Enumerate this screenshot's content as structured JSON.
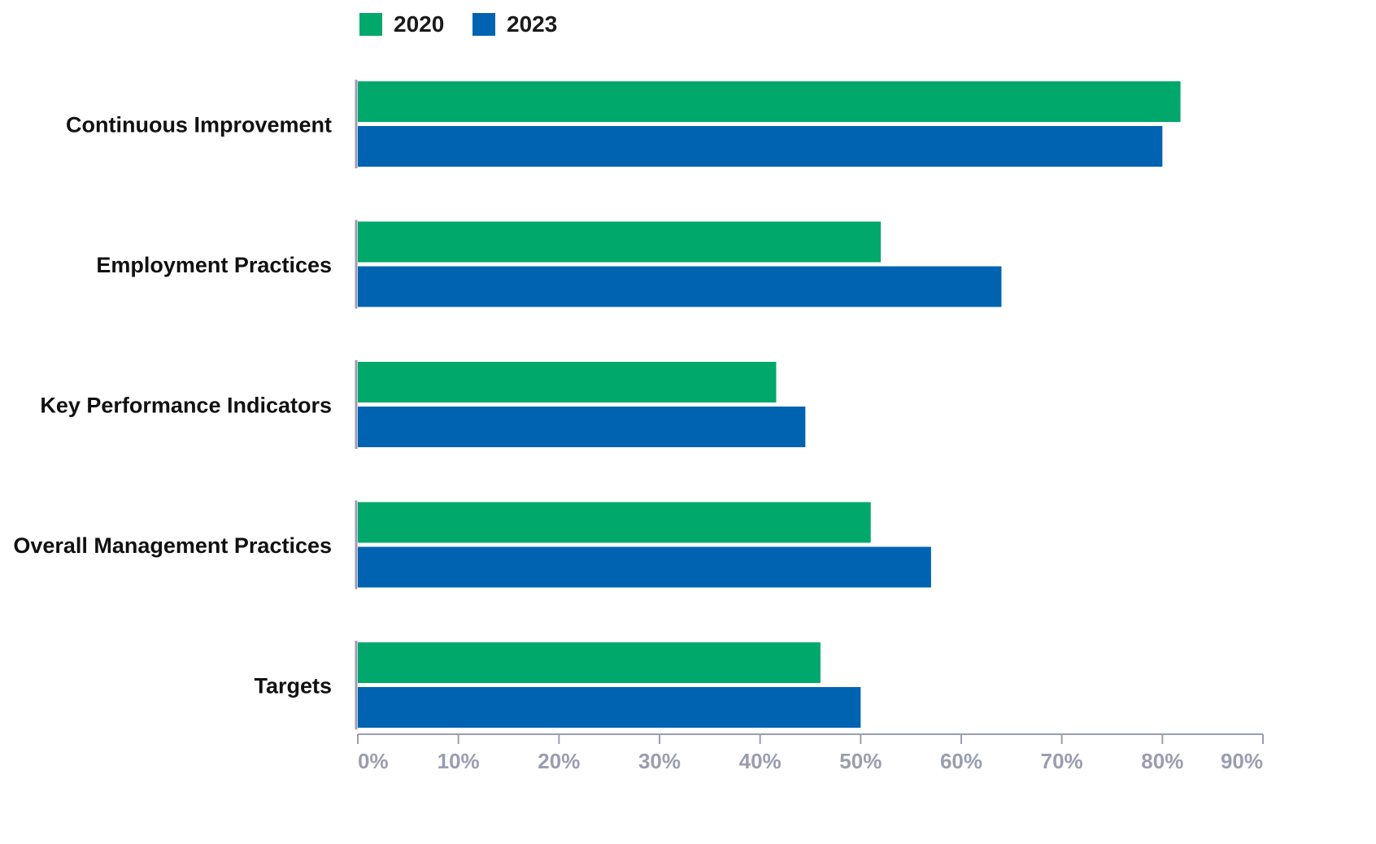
{
  "chart_data": {
    "type": "bar",
    "orientation": "horizontal",
    "categories": [
      "Continuous Improvement",
      "Employment Practices",
      "Key Performance Indicators",
      "Overall Management Practices",
      "Targets"
    ],
    "series": [
      {
        "name": "2020",
        "color": "#00a86b",
        "values": [
          81.8,
          52.0,
          41.6,
          51.0,
          46.0
        ]
      },
      {
        "name": "2023",
        "color": "#0063b1",
        "values": [
          80.0,
          64.0,
          44.5,
          57.0,
          50.0
        ]
      }
    ],
    "xlim": [
      0,
      90
    ],
    "xticks": [
      "0%",
      "10%",
      "20%",
      "30%",
      "40%",
      "50%",
      "60%",
      "70%",
      "80%",
      "90%"
    ],
    "title": "",
    "xlabel": "",
    "ylabel": "",
    "legend": "top-left",
    "grid": false,
    "axis_color": "#9a9db0"
  }
}
